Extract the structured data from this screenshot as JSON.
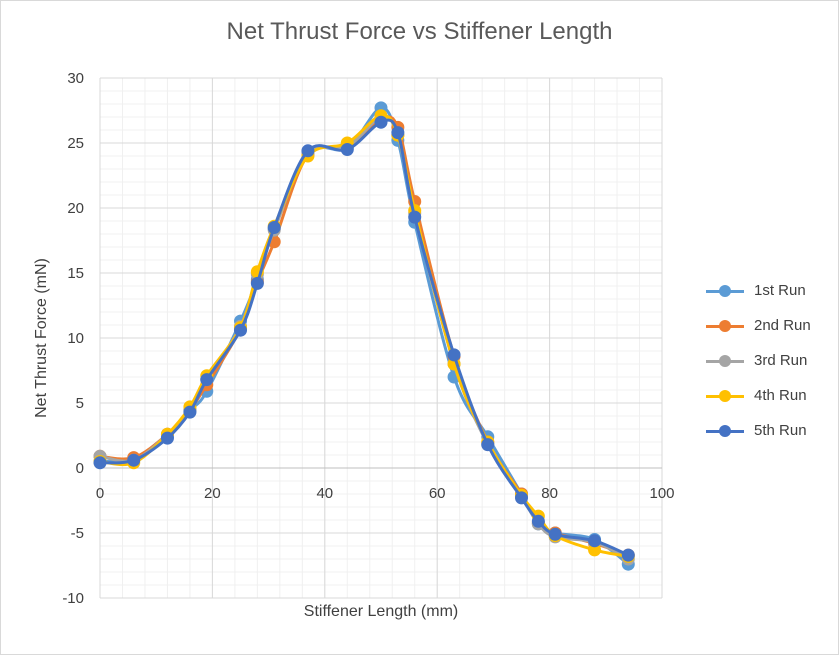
{
  "chart_data": {
    "type": "scatter",
    "title": "Net Thrust Force vs Stiffener Length",
    "xlabel": "Stiffener Length (mm)",
    "ylabel": "Net Thrust Force (mN)",
    "xlim": [
      0,
      100
    ],
    "ylim": [
      -10,
      30
    ],
    "xticks": [
      "0",
      "20",
      "40",
      "60",
      "80",
      "100"
    ],
    "yticks": [
      "-10",
      "-5",
      "0",
      "5",
      "10",
      "15",
      "20",
      "25",
      "30"
    ],
    "grid": true,
    "legend_position": "right",
    "series": [
      {
        "name": "1st Run",
        "color": "#5B9BD5",
        "x": [
          0,
          6,
          12,
          16,
          19,
          25,
          28,
          31,
          37,
          44,
          50,
          53,
          56,
          63,
          69,
          75,
          78,
          81,
          88,
          94
        ],
        "y": [
          0.5,
          0.7,
          2.4,
          4.4,
          5.9,
          11.3,
          14.5,
          18.4,
          24.3,
          24.6,
          27.7,
          25.2,
          18.9,
          7.0,
          2.4,
          -2.0,
          -4.3,
          -5.0,
          -5.5,
          -7.4
        ]
      },
      {
        "name": "2nd Run",
        "color": "#ED7D31",
        "x": [
          0,
          6,
          12,
          16,
          19,
          25,
          28,
          31,
          37,
          44,
          50,
          53,
          56,
          63,
          69,
          75,
          78,
          81,
          88,
          94
        ],
        "y": [
          0.9,
          0.8,
          2.6,
          4.5,
          6.4,
          10.7,
          14.3,
          17.4,
          24.1,
          24.7,
          26.8,
          26.2,
          20.5,
          8.6,
          2.0,
          -2.0,
          -4.2,
          -5.0,
          -5.8,
          -6.7
        ]
      },
      {
        "name": "3rd Run",
        "color": "#A5A5A5",
        "x": [
          0,
          6,
          12,
          16,
          19,
          25,
          28,
          31,
          37,
          44,
          50,
          53,
          56,
          63,
          69,
          75,
          78,
          81,
          88,
          94
        ],
        "y": [
          0.9,
          0.6,
          2.6,
          4.5,
          6.8,
          10.9,
          14.9,
          18.3,
          24.2,
          24.7,
          27.0,
          25.6,
          19.6,
          8.0,
          1.8,
          -2.2,
          -4.3,
          -5.3,
          -5.7,
          -7.0
        ]
      },
      {
        "name": "4th Run",
        "color": "#FFC000",
        "x": [
          0,
          6,
          12,
          16,
          19,
          25,
          28,
          31,
          37,
          44,
          50,
          53,
          56,
          63,
          69,
          75,
          78,
          81,
          88,
          94
        ],
        "y": [
          0.5,
          0.4,
          2.6,
          4.7,
          7.1,
          10.8,
          15.1,
          18.6,
          24.0,
          25.0,
          27.1,
          25.6,
          19.8,
          8.0,
          2.0,
          -2.1,
          -3.7,
          -5.2,
          -6.3,
          -6.8
        ]
      },
      {
        "name": "5th Run",
        "color": "#4472C4",
        "x": [
          0,
          6,
          12,
          16,
          19,
          25,
          28,
          31,
          37,
          44,
          50,
          53,
          56,
          63,
          69,
          75,
          78,
          81,
          88,
          94
        ],
        "y": [
          0.4,
          0.6,
          2.3,
          4.3,
          6.8,
          10.6,
          14.2,
          18.5,
          24.4,
          24.5,
          26.6,
          25.8,
          19.3,
          8.7,
          1.8,
          -2.3,
          -4.1,
          -5.1,
          -5.6,
          -6.7
        ]
      }
    ]
  }
}
